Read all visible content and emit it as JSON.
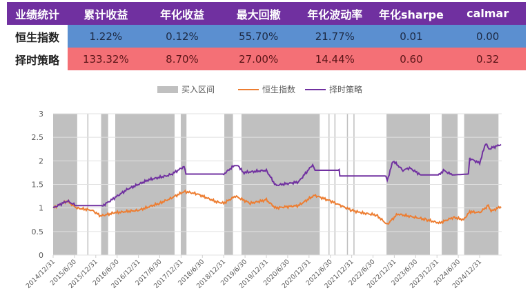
{
  "table": {
    "headers": [
      "业绩统计",
      "累计收益",
      "年化收益",
      "最大回撤",
      "年化波动率",
      "年化sharpe",
      "calmar"
    ],
    "rows": [
      {
        "name": "恒生指数",
        "values": [
          "1.22%",
          "0.12%",
          "55.70%",
          "21.77%",
          "0.01",
          "0.00"
        ]
      },
      {
        "name": "择时策略",
        "values": [
          "133.32%",
          "8.70%",
          "27.00%",
          "14.44%",
          "0.60",
          "0.32"
        ]
      }
    ],
    "colors": {
      "header": "#7030a0",
      "row1": "#5b8fd0",
      "row2": "#f47076"
    }
  },
  "chart_data": {
    "type": "line",
    "legend_position": "top",
    "legend": [
      "买入区间",
      "恒生指数",
      "择时策略"
    ],
    "ylim": [
      0,
      3
    ],
    "yticks": [
      "0",
      "0.5",
      "1",
      "1.5",
      "2",
      "2.5",
      "3"
    ],
    "xticks": [
      "2014/12/31",
      "2015/6/30",
      "2015/12/31",
      "2016/6/30",
      "2016/12/31",
      "2017/6/30",
      "2017/12/31",
      "2018/6/30",
      "2018/12/31",
      "2019/6/30",
      "2019/12/31",
      "2020/6/30",
      "2020/12/31",
      "2021/6/30",
      "2021/12/31",
      "2022/6/30",
      "2022/12/31",
      "2023/6/30",
      "2023/12/31",
      "2024/6/30",
      "2024/12/31"
    ],
    "grid": true,
    "buy_intervals": [
      [
        "2014-12-31",
        "2015-07-25"
      ],
      [
        "2015-10-20",
        "2015-10-28"
      ],
      [
        "2016-02-15",
        "2016-04-15"
      ],
      [
        "2016-06-15",
        "2017-11-05"
      ],
      [
        "2017-12-28",
        "2018-02-15"
      ],
      [
        "2019-01-05",
        "2019-03-20"
      ],
      [
        "2019-06-01",
        "2021-04-01"
      ],
      [
        "2021-06-15",
        "2021-06-22"
      ],
      [
        "2021-08-05",
        "2021-08-12"
      ],
      [
        "2021-11-20",
        "2021-11-27"
      ],
      [
        "2022-01-15",
        "2022-01-22"
      ],
      [
        "2022-10-25",
        "2023-11-01"
      ],
      [
        "2024-02-10",
        "2024-06-25"
      ],
      [
        "2024-08-20",
        "2025-06-10"
      ]
    ],
    "series": [
      {
        "name": "恒生指数",
        "color": "#ed7d31",
        "points": [
          [
            "2014-12-31",
            1.0
          ],
          [
            "2015-05-01",
            1.15
          ],
          [
            "2015-07-15",
            1.0
          ],
          [
            "2015-12-01",
            0.95
          ],
          [
            "2016-02-10",
            0.83
          ],
          [
            "2016-06-15",
            0.9
          ],
          [
            "2016-12-31",
            0.95
          ],
          [
            "2017-06-30",
            1.1
          ],
          [
            "2017-09-30",
            1.2
          ],
          [
            "2018-01-26",
            1.35
          ],
          [
            "2018-05-15",
            1.3
          ],
          [
            "2018-10-30",
            1.13
          ],
          [
            "2018-12-31",
            1.1
          ],
          [
            "2019-04-10",
            1.25
          ],
          [
            "2019-08-15",
            1.1
          ],
          [
            "2019-12-31",
            1.17
          ],
          [
            "2020-03-19",
            1.0
          ],
          [
            "2020-09-30",
            1.05
          ],
          [
            "2021-02-15",
            1.27
          ],
          [
            "2021-06-30",
            1.15
          ],
          [
            "2021-09-30",
            1.05
          ],
          [
            "2021-12-31",
            0.95
          ],
          [
            "2022-03-15",
            0.9
          ],
          [
            "2022-07-30",
            0.85
          ],
          [
            "2022-10-31",
            0.65
          ],
          [
            "2023-01-27",
            0.87
          ],
          [
            "2023-06-30",
            0.8
          ],
          [
            "2023-09-30",
            0.75
          ],
          [
            "2024-01-22",
            0.68
          ],
          [
            "2024-05-20",
            0.8
          ],
          [
            "2024-08-15",
            0.75
          ],
          [
            "2024-10-07",
            0.92
          ],
          [
            "2024-12-31",
            0.9
          ],
          [
            "2025-03-15",
            1.05
          ],
          [
            "2025-04-08",
            0.93
          ],
          [
            "2025-07-01",
            1.03
          ]
        ]
      },
      {
        "name": "择时策略",
        "color": "#7030a0",
        "points": [
          [
            "2014-12-31",
            1.0
          ],
          [
            "2015-05-01",
            1.15
          ],
          [
            "2015-07-15",
            1.05
          ],
          [
            "2016-03-01",
            1.05
          ],
          [
            "2016-09-30",
            1.4
          ],
          [
            "2017-03-31",
            1.6
          ],
          [
            "2017-09-30",
            1.7
          ],
          [
            "2018-01-26",
            1.88
          ],
          [
            "2018-02-10",
            1.72
          ],
          [
            "2018-12-31",
            1.72
          ],
          [
            "2019-03-31",
            1.9
          ],
          [
            "2019-05-05",
            1.9
          ],
          [
            "2019-06-15",
            1.75
          ],
          [
            "2019-12-31",
            1.8
          ],
          [
            "2020-03-19",
            1.48
          ],
          [
            "2020-09-30",
            1.55
          ],
          [
            "2021-01-31",
            1.92
          ],
          [
            "2021-02-20",
            1.8
          ],
          [
            "2021-09-15",
            1.8
          ],
          [
            "2021-09-20",
            1.68
          ],
          [
            "2022-10-20",
            1.68
          ],
          [
            "2022-10-31",
            1.58
          ],
          [
            "2022-12-20",
            2.0
          ],
          [
            "2023-03-15",
            1.8
          ],
          [
            "2023-05-10",
            1.85
          ],
          [
            "2023-08-15",
            1.7
          ],
          [
            "2024-01-20",
            1.7
          ],
          [
            "2024-02-25",
            1.8
          ],
          [
            "2024-05-10",
            1.7
          ],
          [
            "2024-09-25",
            1.72
          ],
          [
            "2024-10-07",
            2.05
          ],
          [
            "2024-12-31",
            1.95
          ],
          [
            "2025-02-20",
            2.38
          ],
          [
            "2025-03-20",
            2.25
          ],
          [
            "2025-07-01",
            2.35
          ]
        ]
      }
    ],
    "buy_color": "#c0c0c0"
  }
}
